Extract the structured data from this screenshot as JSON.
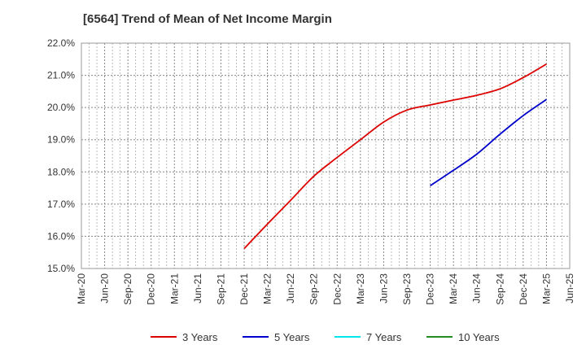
{
  "title": "[6564]  Trend of Mean of Net Income Margin",
  "chart_data": {
    "type": "line",
    "title": "[6564]  Trend of Mean of Net Income Margin",
    "xlabel": "",
    "ylabel": "",
    "x": [
      "Mar-20",
      "Jun-20",
      "Sep-20",
      "Dec-20",
      "Mar-21",
      "Jun-21",
      "Sep-21",
      "Dec-21",
      "Mar-22",
      "Jun-22",
      "Sep-22",
      "Dec-22",
      "Mar-23",
      "Jun-23",
      "Sep-23",
      "Dec-23",
      "Mar-24",
      "Jun-24",
      "Sep-24",
      "Dec-24",
      "Mar-25",
      "Jun-25"
    ],
    "ylim": [
      15.0,
      22.0
    ],
    "y_ticks": [
      "15.0%",
      "16.0%",
      "17.0%",
      "18.0%",
      "19.0%",
      "20.0%",
      "21.0%",
      "22.0%"
    ],
    "y_tick_values": [
      15,
      16,
      17,
      18,
      19,
      20,
      21,
      22
    ],
    "grid": true,
    "legend_position": "bottom",
    "series": [
      {
        "name": "3 Years",
        "color": "#dd0000",
        "values": [
          null,
          null,
          null,
          null,
          null,
          null,
          null,
          15.62,
          16.38,
          17.12,
          17.87,
          18.45,
          19.0,
          19.55,
          19.92,
          20.08,
          20.23,
          20.38,
          20.58,
          20.93,
          21.35,
          null
        ]
      },
      {
        "name": "5 Years",
        "color": "#0000cc",
        "values": [
          null,
          null,
          null,
          null,
          null,
          null,
          null,
          null,
          null,
          null,
          null,
          null,
          null,
          null,
          null,
          17.57,
          18.05,
          18.55,
          19.17,
          19.75,
          20.25,
          null
        ]
      },
      {
        "name": "7 Years",
        "color": "#00e5ee",
        "values": [
          null,
          null,
          null,
          null,
          null,
          null,
          null,
          null,
          null,
          null,
          null,
          null,
          null,
          null,
          null,
          null,
          null,
          null,
          null,
          null,
          null,
          null
        ]
      },
      {
        "name": "10 Years",
        "color": "#228b22",
        "values": [
          null,
          null,
          null,
          null,
          null,
          null,
          null,
          null,
          null,
          null,
          null,
          null,
          null,
          null,
          null,
          null,
          null,
          null,
          null,
          null,
          null,
          null
        ]
      }
    ]
  }
}
